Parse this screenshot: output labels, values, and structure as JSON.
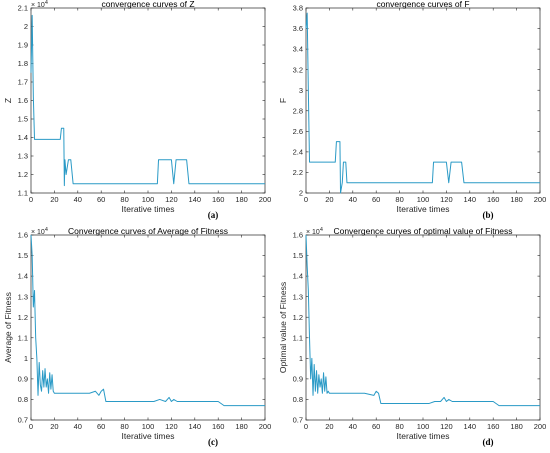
{
  "chart_data": [
    {
      "type": "line",
      "panel_label": "(a)",
      "title": "convergence curves of Z",
      "xlabel": "Iterative times",
      "ylabel": "Z",
      "xlim": [
        0,
        200
      ],
      "ylim": [
        1.1,
        2.1
      ],
      "y_exponent": "× 10",
      "y_exponent_power": "4",
      "xticks": [
        "0",
        "20",
        "40",
        "60",
        "80",
        "100",
        "120",
        "140",
        "160",
        "180",
        "200"
      ],
      "yticks": [
        "1.1",
        "1.2",
        "1.3",
        "1.4",
        "1.5",
        "1.6",
        "1.7",
        "1.8",
        "1.9",
        "2",
        "2.1"
      ],
      "grid": false,
      "color": "#2a9ac6",
      "series": [
        {
          "x": [
            0,
            1,
            2,
            3,
            25,
            26,
            28,
            28.5,
            29,
            30,
            32,
            34,
            36,
            108,
            109,
            118,
            120,
            122,
            124,
            126,
            129,
            133,
            135,
            200
          ],
          "y": [
            1.75,
            2.06,
            1.62,
            1.39,
            1.39,
            1.45,
            1.45,
            1.14,
            1.28,
            1.2,
            1.28,
            1.28,
            1.15,
            1.15,
            1.28,
            1.28,
            1.28,
            1.15,
            1.28,
            1.28,
            1.28,
            1.28,
            1.15,
            1.15
          ]
        }
      ]
    },
    {
      "type": "line",
      "panel_label": "(b)",
      "title": "convergence curves of F",
      "xlabel": "Iterative times",
      "ylabel": "F",
      "xlim": [
        0,
        200
      ],
      "ylim": [
        2,
        3.8
      ],
      "xticks": [
        "0",
        "20",
        "40",
        "60",
        "80",
        "100",
        "120",
        "140",
        "160",
        "180",
        "200"
      ],
      "yticks": [
        "2",
        "2.2",
        "2.4",
        "2.6",
        "2.8",
        "3",
        "3.2",
        "3.4",
        "3.6",
        "3.8"
      ],
      "grid": false,
      "color": "#2a9ac6",
      "series": [
        {
          "x": [
            0,
            1,
            2,
            3,
            25,
            26,
            29,
            29.5,
            31,
            32,
            34,
            35,
            36,
            108,
            109,
            118,
            120,
            122,
            124,
            126,
            129,
            133,
            135,
            200
          ],
          "y": [
            3.6,
            3.75,
            3.0,
            2.3,
            2.3,
            2.5,
            2.5,
            2.0,
            2.1,
            2.3,
            2.3,
            2.1,
            2.1,
            2.1,
            2.3,
            2.3,
            2.3,
            2.1,
            2.3,
            2.3,
            2.3,
            2.3,
            2.1,
            2.1
          ]
        }
      ]
    },
    {
      "type": "line",
      "panel_label": "(c)",
      "title": "Convergence curves of Average of Fitness",
      "xlabel": "Iterative times",
      "ylabel": "Average of Fitness",
      "xlim": [
        0,
        200
      ],
      "ylim": [
        0.7,
        1.6
      ],
      "y_exponent": "× 10",
      "y_exponent_power": "4",
      "xticks": [
        "0",
        "20",
        "40",
        "60",
        "80",
        "100",
        "120",
        "140",
        "160",
        "180",
        "200"
      ],
      "yticks": [
        "0.7",
        "0.8",
        "0.9",
        "1",
        "1.1",
        "1.2",
        "1.3",
        "1.4",
        "1.5",
        "1.6"
      ],
      "grid": false,
      "color": "#2a9ac6",
      "series": [
        {
          "x": [
            0,
            1,
            2,
            3,
            4,
            5,
            6,
            7,
            8,
            9,
            10,
            11,
            12,
            13,
            14,
            15,
            16,
            17,
            18,
            19,
            20,
            22,
            25,
            30,
            40,
            50,
            55,
            58,
            60,
            62,
            64,
            66,
            80,
            100,
            105,
            110,
            115,
            118,
            120,
            122,
            125,
            130,
            140,
            160,
            165,
            170,
            200
          ],
          "y": [
            1.6,
            1.5,
            1.25,
            1.33,
            1.1,
            1.0,
            0.82,
            0.98,
            0.87,
            0.84,
            0.94,
            0.86,
            0.95,
            0.86,
            0.9,
            0.83,
            0.93,
            0.85,
            0.92,
            0.84,
            0.83,
            0.83,
            0.83,
            0.83,
            0.83,
            0.83,
            0.84,
            0.82,
            0.84,
            0.85,
            0.79,
            0.79,
            0.79,
            0.79,
            0.79,
            0.8,
            0.79,
            0.81,
            0.79,
            0.8,
            0.79,
            0.79,
            0.79,
            0.79,
            0.77,
            0.77,
            0.77
          ]
        }
      ]
    },
    {
      "type": "line",
      "panel_label": "(d)",
      "title": "Convergence curves of optimal value of  Fitness",
      "xlabel": "Iterative times",
      "ylabel": "Optimal value of Fitness",
      "xlim": [
        0,
        200
      ],
      "ylim": [
        0.7,
        1.6
      ],
      "y_exponent": "× 10",
      "y_exponent_power": "4",
      "xticks": [
        "0",
        "20",
        "40",
        "60",
        "80",
        "100",
        "120",
        "140",
        "160",
        "180",
        "200"
      ],
      "yticks": [
        "0.7",
        "0.8",
        "0.9",
        "1",
        "1.1",
        "1.2",
        "1.3",
        "1.4",
        "1.5",
        "1.6"
      ],
      "grid": false,
      "color": "#2a9ac6",
      "series": [
        {
          "x": [
            0,
            1,
            2,
            3,
            4,
            5,
            6,
            7,
            8,
            9,
            10,
            11,
            12,
            13,
            14,
            15,
            16,
            17,
            18,
            19,
            20,
            22,
            25,
            30,
            40,
            50,
            58,
            60,
            62,
            64,
            66,
            80,
            100,
            105,
            110,
            115,
            118,
            120,
            122,
            125,
            130,
            140,
            160,
            165,
            170,
            200
          ],
          "y": [
            1.6,
            1.45,
            1.33,
            1.1,
            0.9,
            1.0,
            0.82,
            0.97,
            0.84,
            0.94,
            0.83,
            0.92,
            0.86,
            0.9,
            0.83,
            0.93,
            0.84,
            0.91,
            0.83,
            0.84,
            0.83,
            0.83,
            0.83,
            0.83,
            0.83,
            0.83,
            0.82,
            0.84,
            0.83,
            0.78,
            0.78,
            0.78,
            0.78,
            0.78,
            0.79,
            0.79,
            0.81,
            0.79,
            0.8,
            0.79,
            0.79,
            0.79,
            0.79,
            0.77,
            0.77,
            0.77
          ]
        }
      ]
    }
  ]
}
